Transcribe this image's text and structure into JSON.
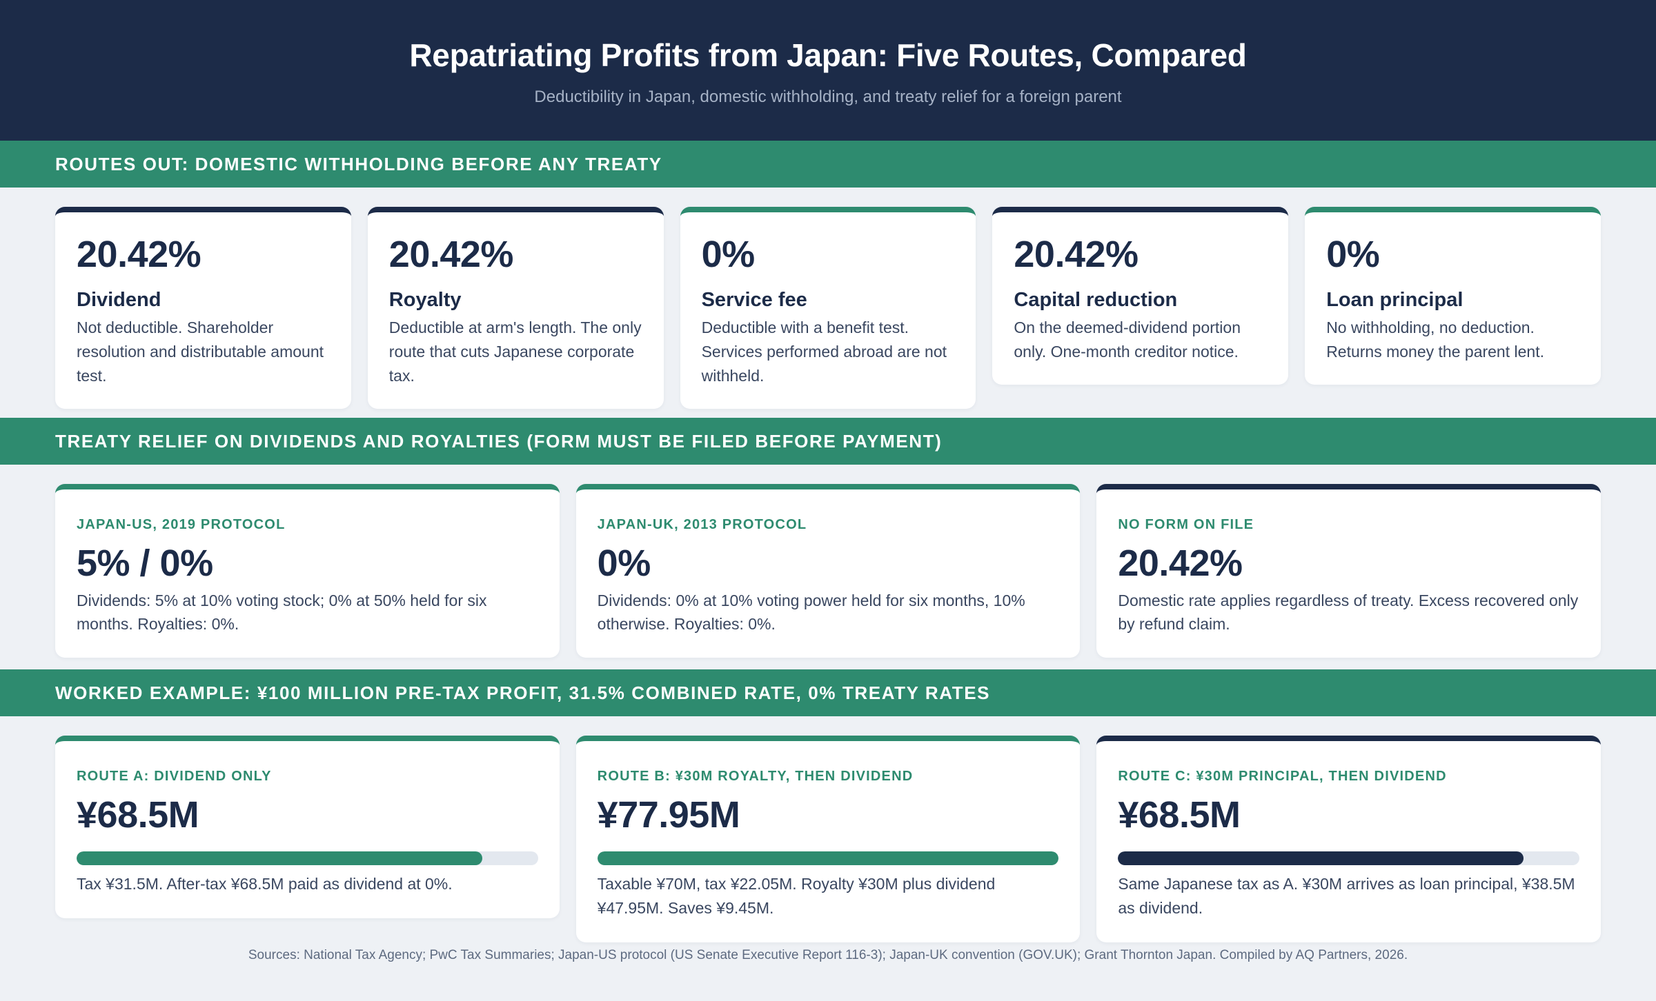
{
  "header": {
    "title": "Repatriating Profits from Japan: Five Routes, Compared",
    "subtitle": "Deductibility in Japan, domestic withholding, and treaty relief for a foreign parent"
  },
  "section1": {
    "title": "Routes out: domestic withholding before any treaty",
    "cards": [
      {
        "value": "20.42%",
        "name": "Dividend",
        "desc": "Not deductible. Shareholder resolution and distributable amount test.",
        "accent": "#1c2b48"
      },
      {
        "value": "20.42%",
        "name": "Royalty",
        "desc": "Deductible at arm's length. The only route that cuts Japanese corporate tax.",
        "accent": "#1c2b48"
      },
      {
        "value": "0%",
        "name": "Service fee",
        "desc": "Deductible with a benefit test. Services performed abroad are not withheld.",
        "accent": "#2e8b6f"
      },
      {
        "value": "20.42%",
        "name": "Capital reduction",
        "desc": "On the deemed-dividend portion only. One-month creditor notice.",
        "accent": "#1c2b48"
      },
      {
        "value": "0%",
        "name": "Loan principal",
        "desc": "No withholding, no deduction. Returns money the parent lent.",
        "accent": "#2e8b6f"
      }
    ]
  },
  "section2": {
    "title": "Treaty relief on dividends and royalties (form must be filed before payment)",
    "cards": [
      {
        "tag": "Japan-US, 2019 protocol",
        "value": "5% / 0%",
        "desc": "Dividends: 5% at 10% voting stock; 0% at 50% held for six months. Royalties: 0%.",
        "accent": "#2e8b6f"
      },
      {
        "tag": "Japan-UK, 2013 protocol",
        "value": "0%",
        "desc": "Dividends: 0% at 10% voting power held for six months, 10% otherwise. Royalties: 0%.",
        "accent": "#2e8b6f"
      },
      {
        "tag": "No form on file",
        "value": "20.42%",
        "desc": "Domestic rate applies regardless of treaty. Excess recovered only by refund claim.",
        "accent": "#1c2b48"
      }
    ]
  },
  "section3": {
    "title": "Worked example: ¥100 million pre-tax profit, 31.5% combined rate, 0% treaty rates",
    "cards": [
      {
        "tag": "Route A: dividend only",
        "value": "¥68.5M",
        "amount_m": 68.5,
        "max_m": 77.95,
        "desc": "Tax ¥31.5M. After-tax ¥68.5M paid as dividend at 0%.",
        "accent": "#2e8b6f",
        "bar_color": "#2e8b6f"
      },
      {
        "tag": "Route B: ¥30M royalty, then dividend",
        "value": "¥77.95M",
        "amount_m": 77.95,
        "max_m": 77.95,
        "desc": "Taxable ¥70M, tax ¥22.05M. Royalty ¥30M plus dividend ¥47.95M. Saves ¥9.45M.",
        "accent": "#2e8b6f",
        "bar_color": "#2e8b6f"
      },
      {
        "tag": "Route C: ¥30M principal, then dividend",
        "value": "¥68.5M",
        "amount_m": 68.5,
        "max_m": 77.95,
        "desc": "Same Japanese tax as A. ¥30M arrives as loan principal, ¥38.5M as dividend.",
        "accent": "#1c2b48",
        "bar_color": "#1c2b48"
      }
    ]
  },
  "footer": {
    "sources": "Sources: National Tax Agency; PwC Tax Summaries; Japan-US protocol (US Senate Executive Report 116-3); Japan-UK convention (GOV.UK); Grant Thornton Japan. Compiled by AQ Partners, 2026."
  }
}
